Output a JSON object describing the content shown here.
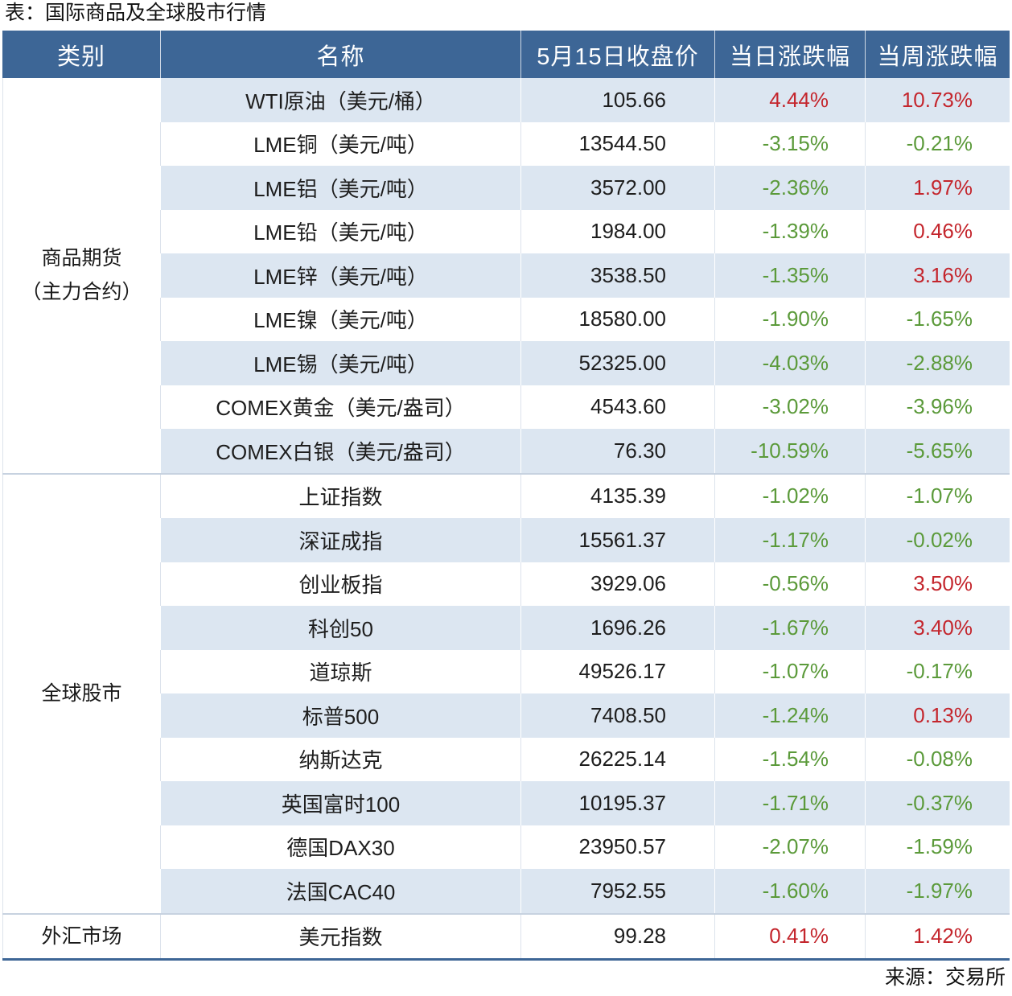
{
  "colors": {
    "header_bg": "#3D6696",
    "stripe_bg": "#DCE6F1",
    "up": "#C4262D",
    "down": "#5B9A3A"
  },
  "chart_data": {
    "type": "table",
    "title": "表：国际商品及全球股市行情",
    "columns": [
      "类别",
      "名称",
      "5月15日收盘价",
      "当日涨跌幅",
      "当周涨跌幅"
    ],
    "groups": [
      {
        "category": [
          "商品期货",
          "（主力合约）"
        ],
        "rows": [
          {
            "name": "WTI原油（美元/桶）",
            "close": "105.66",
            "day_change": "4.44%",
            "week_change": "10.73%"
          },
          {
            "name": "LME铜（美元/吨）",
            "close": "13544.50",
            "day_change": "-3.15%",
            "week_change": "-0.21%"
          },
          {
            "name": "LME铝（美元/吨）",
            "close": "3572.00",
            "day_change": "-2.36%",
            "week_change": "1.97%"
          },
          {
            "name": "LME铅（美元/吨）",
            "close": "1984.00",
            "day_change": "-1.39%",
            "week_change": "0.46%"
          },
          {
            "name": "LME锌（美元/吨）",
            "close": "3538.50",
            "day_change": "-1.35%",
            "week_change": "3.16%"
          },
          {
            "name": "LME镍（美元/吨）",
            "close": "18580.00",
            "day_change": "-1.90%",
            "week_change": "-1.65%"
          },
          {
            "name": "LME锡（美元/吨）",
            "close": "52325.00",
            "day_change": "-4.03%",
            "week_change": "-2.88%"
          },
          {
            "name": "COMEX黄金（美元/盎司）",
            "close": "4543.60",
            "day_change": "-3.02%",
            "week_change": "-3.96%"
          },
          {
            "name": "COMEX白银（美元/盎司）",
            "close": "76.30",
            "day_change": "-10.59%",
            "week_change": "-5.65%"
          }
        ]
      },
      {
        "category": [
          "全球股市"
        ],
        "rows": [
          {
            "name": "上证指数",
            "close": "4135.39",
            "day_change": "-1.02%",
            "week_change": "-1.07%"
          },
          {
            "name": "深证成指",
            "close": "15561.37",
            "day_change": "-1.17%",
            "week_change": "-0.02%"
          },
          {
            "name": "创业板指",
            "close": "3929.06",
            "day_change": "-0.56%",
            "week_change": "3.50%"
          },
          {
            "name": "科创50",
            "close": "1696.26",
            "day_change": "-1.67%",
            "week_change": "3.40%"
          },
          {
            "name": "道琼斯",
            "close": "49526.17",
            "day_change": "-1.07%",
            "week_change": "-0.17%"
          },
          {
            "name": "标普500",
            "close": "7408.50",
            "day_change": "-1.24%",
            "week_change": "0.13%"
          },
          {
            "name": "纳斯达克",
            "close": "26225.14",
            "day_change": "-1.54%",
            "week_change": "-0.08%"
          },
          {
            "name": "英国富时100",
            "close": "10195.37",
            "day_change": "-1.71%",
            "week_change": "-0.37%"
          },
          {
            "name": "德国DAX30",
            "close": "23950.57",
            "day_change": "-2.07%",
            "week_change": "-1.59%"
          },
          {
            "name": "法国CAC40",
            "close": "7952.55",
            "day_change": "-1.60%",
            "week_change": "-1.97%"
          }
        ]
      },
      {
        "category": [
          "外汇市场"
        ],
        "rows": [
          {
            "name": "美元指数",
            "close": "99.28",
            "day_change": "0.41%",
            "week_change": "1.42%"
          }
        ]
      }
    ],
    "source": "来源：交易所"
  }
}
